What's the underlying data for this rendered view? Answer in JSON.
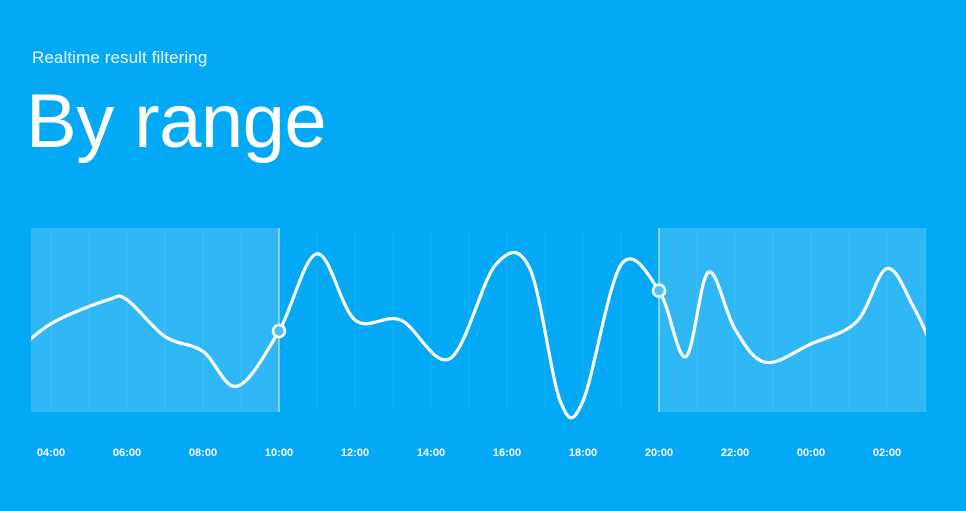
{
  "header": {
    "subtitle": "Realtime result filtering",
    "title": "By range"
  },
  "colors": {
    "background": "#03A9F4",
    "line": "#ffffff",
    "shade": "#4FC3F7",
    "handle_fill": "#4FC3F7"
  },
  "chart_data": {
    "type": "line",
    "title": "By range",
    "xlabel": "",
    "ylabel": "",
    "x_tick_labels": [
      "04:00",
      "06:00",
      "08:00",
      "10:00",
      "12:00",
      "14:00",
      "16:00",
      "18:00",
      "20:00",
      "22:00",
      "00:00",
      "02:00"
    ],
    "selected_range": {
      "start": "10:00",
      "end": "20:00"
    },
    "grid": "vertical",
    "series": [
      {
        "x_hours": [
          3.0,
          4.0,
          5.5,
          6.0,
          7.0,
          8.0,
          8.9,
          10.0,
          11.0,
          12.0,
          13.2,
          14.5,
          15.7,
          16.6,
          17.4,
          18.0,
          19.0,
          20.0,
          20.7,
          21.3,
          22.0,
          22.8,
          24.0,
          25.2,
          26.0,
          26.7,
          27.2
        ],
        "y": [
          0.31,
          0.48,
          0.61,
          0.61,
          0.41,
          0.33,
          0.14,
          0.44,
          0.86,
          0.5,
          0.5,
          0.29,
          0.8,
          0.78,
          0.06,
          0.06,
          0.8,
          0.66,
          0.3,
          0.76,
          0.45,
          0.27,
          0.37,
          0.49,
          0.78,
          0.57,
          0.35
        ]
      }
    ]
  }
}
